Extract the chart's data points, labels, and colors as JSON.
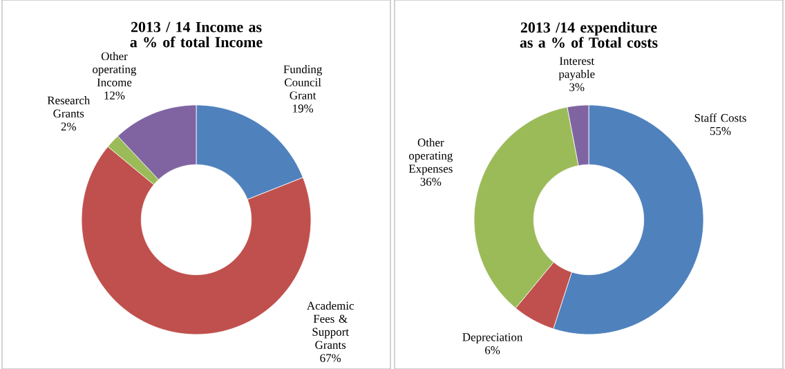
{
  "chart_data": [
    {
      "type": "donut",
      "title": "2013 / 14 Income as a % of total Income",
      "categories": [
        "Funding Council Grant",
        "Academic Fees & Support Grants",
        "Research Grants",
        "Other operating Income"
      ],
      "values": [
        19,
        67,
        2,
        12
      ],
      "colors": [
        "#4f81bd",
        "#c0504d",
        "#9bbb59",
        "#8064a2"
      ],
      "value_labels": [
        "19%",
        "67%",
        "2%",
        "12%"
      ]
    },
    {
      "type": "donut",
      "title": "2013 /14 expenditure as a % of Total costs",
      "categories": [
        "Staff Costs",
        "Depreciation",
        "Other operating Expenses",
        "Interest payable"
      ],
      "values": [
        55,
        6,
        36,
        3
      ],
      "colors": [
        "#4f81bd",
        "#c0504d",
        "#9bbb59",
        "#8064a2"
      ],
      "value_labels": [
        "55%",
        "6%",
        "36%",
        "3%"
      ]
    }
  ]
}
